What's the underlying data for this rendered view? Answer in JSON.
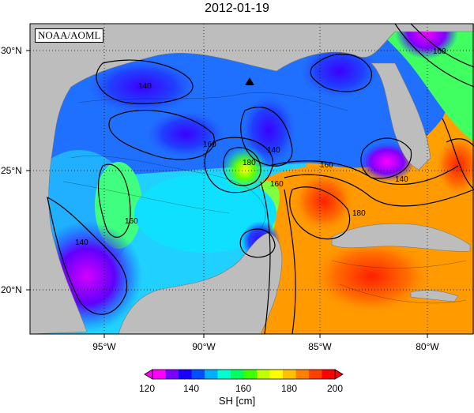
{
  "title": "2012-01-19",
  "source_label": "NOAA/AOML",
  "lat_labels": [
    "30°N",
    "25°N",
    "20°N"
  ],
  "lon_labels": [
    "95°W",
    "90°W",
    "85°W",
    "80°W"
  ],
  "contour_labels": [
    "140",
    "140",
    "140",
    "160",
    "160",
    "160",
    "160",
    "180",
    "180",
    "160",
    "140"
  ],
  "colorbar": {
    "ticks": [
      "120",
      "140",
      "160",
      "180",
      "200"
    ],
    "units": "SH [cm]",
    "colors": [
      "#ff00ff",
      "#7a00ff",
      "#1a00ff",
      "#0050ff",
      "#00b0ff",
      "#00ffd0",
      "#00ff60",
      "#40ff00",
      "#c0ff00",
      "#ffff00",
      "#ffc000",
      "#ff8000",
      "#ff4000",
      "#ff0000"
    ]
  },
  "colors": {
    "land": "#bdbdbd",
    "marker": "#000000"
  }
}
